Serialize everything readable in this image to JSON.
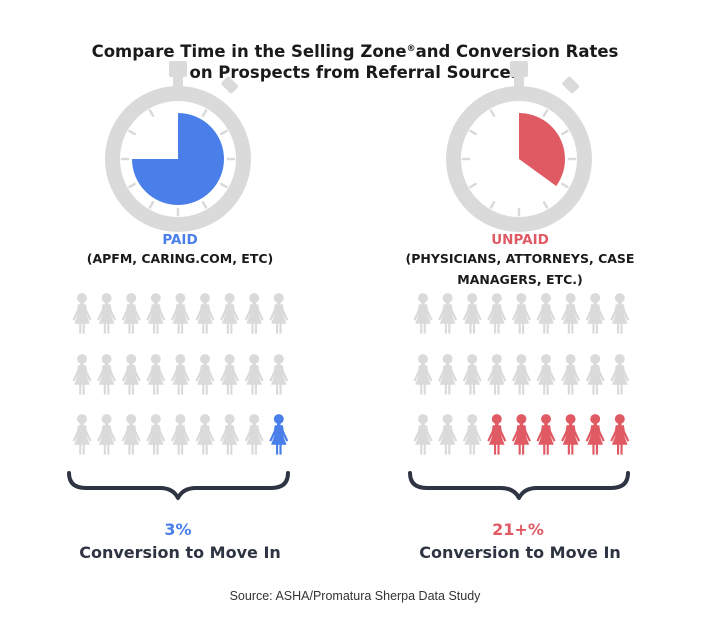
{
  "title": {
    "line1_a": "Compare Time in the Selling Zone",
    "line1_sup": "®",
    "line1_b": "and Conversion Rates",
    "line2": "on Prospects from Referral Sources"
  },
  "source": "Source: ASHA/Promatura Sherpa Data Study",
  "colors": {
    "paid": "#4a7fea",
    "unpaid": "#e05a64",
    "neutral": "#dadada",
    "text_dark": "#2e3442"
  },
  "chart_data": [
    {
      "type": "pictogram",
      "title": "PAID",
      "subtitle": "(APFM, CARING.COM, ETC)",
      "time_fraction": 0.75,
      "icons_total": 27,
      "icons_highlighted": 1,
      "value_label": "3%",
      "caption": "Conversion to Move In",
      "color": "#4a7fea"
    },
    {
      "type": "pictogram",
      "title": "UNPAID",
      "subtitle_lines": [
        "(PHYSICIANS, ATTORNEYS, CASE",
        "MANAGERS, ETC.)"
      ],
      "time_fraction": 0.35,
      "icons_total": 27,
      "icons_highlighted": 6,
      "value_label": "21+%",
      "caption": "Conversion to Move In",
      "color": "#e05a64"
    }
  ]
}
